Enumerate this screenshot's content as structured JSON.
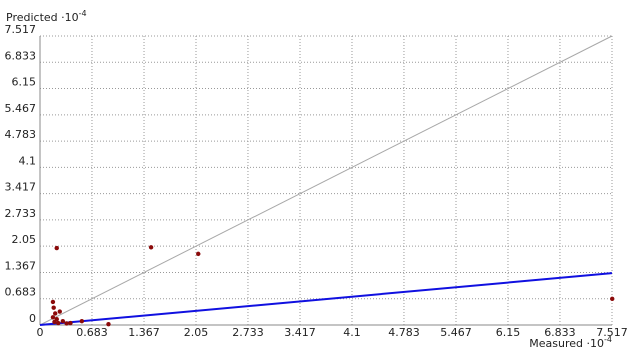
{
  "chart_data": {
    "type": "scatter",
    "y_label": "Predicted ·10",
    "y_label_exponent": "-4",
    "x_label": "Measured ·10",
    "x_label_exponent": "-4",
    "xlim": [
      0,
      7.517
    ],
    "ylim": [
      0,
      7.517
    ],
    "xticks": [
      0,
      0.683,
      1.367,
      2.05,
      2.733,
      3.417,
      4.1,
      4.783,
      5.467,
      6.15,
      6.833,
      7.517
    ],
    "yticks": [
      0,
      0.683,
      1.367,
      2.05,
      2.733,
      3.417,
      4.1,
      4.783,
      5.467,
      6.15,
      6.833,
      7.517
    ],
    "grid": true,
    "series": [
      {
        "color": "#8b0a0a",
        "x": [
          0.22,
          1.46,
          2.08,
          7.52,
          0.17,
          0.18,
          0.2,
          0.22,
          0.19,
          0.24,
          0.3,
          0.4,
          0.55,
          0.9,
          0.17,
          0.26,
          0.35
        ],
        "values": [
          2.0,
          2.02,
          1.85,
          0.68,
          0.6,
          0.45,
          0.3,
          0.15,
          0.08,
          0.05,
          0.1,
          0.05,
          0.1,
          0.02,
          0.2,
          0.35,
          0.04
        ]
      }
    ],
    "reference_line": {
      "color": "#a8a8a8",
      "x": [
        0,
        7.517
      ],
      "values": [
        0,
        7.517
      ]
    },
    "fit_line": {
      "color": "#1010e0",
      "x": [
        0,
        7.517
      ],
      "values": [
        0,
        1.35
      ]
    }
  }
}
